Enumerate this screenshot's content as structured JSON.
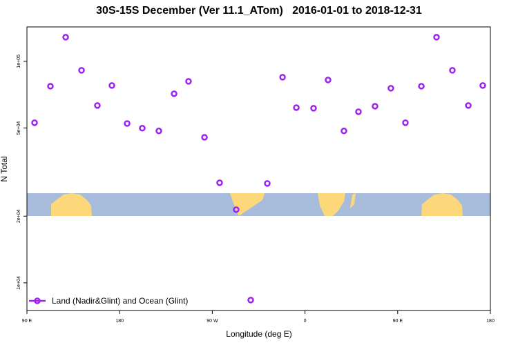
{
  "chart_data": {
    "type": "scatter",
    "title": "30S-15S December (Ver 11.1_ATom)   2016-01-01 to 2018-12-31",
    "xlabel": "Longitude (deg E)",
    "ylabel": "N Total",
    "xlim": [
      90,
      540
    ],
    "xticks": [
      {
        "value": 90,
        "label": "90 E"
      },
      180,
      {
        "value": 270,
        "label": "90 W"
      },
      {
        "value": 360,
        "label": "0"
      },
      {
        "value": 450,
        "label": "90 E"
      },
      {
        "value": 540,
        "label": "180"
      }
    ],
    "ylim": [
      7500,
      143000
    ],
    "log_y": true,
    "yticks": [
      {
        "value": 10000,
        "label": "1e+04"
      },
      {
        "value": 20000,
        "label": "2e+04"
      },
      {
        "value": 50000,
        "label": "5e+04"
      },
      {
        "value": 100000,
        "label": "1e+05"
      }
    ],
    "legend": "bottomleft",
    "grid": false,
    "series": [
      {
        "name": "Land (Nadir&Glint) and Ocean (Glint)",
        "color": "#a020f0",
        "x": [
          97.4,
          112.8,
          127.6,
          143,
          158.4,
          172.5,
          187.3,
          202,
          218.1,
          232.9,
          246.9,
          262.4,
          277.1,
          293.2,
          307.3,
          323.4,
          338.2,
          351.6,
          368.3,
          382.4,
          397.8,
          411.9,
          428,
          443.4,
          457.5,
          473,
          487.7,
          503.1,
          518.6,
          532.6
        ],
        "values": [
          52800,
          77200,
          128500,
          91100,
          63200,
          77800,
          52400,
          49900,
          48500,
          71400,
          81200,
          45400,
          28300,
          21400,
          8360,
          28100,
          84800,
          61800,
          61400,
          82400,
          48500,
          59200,
          62700,
          75600,
          52800,
          77200,
          128500,
          91100,
          63200,
          77800
        ]
      }
    ]
  }
}
